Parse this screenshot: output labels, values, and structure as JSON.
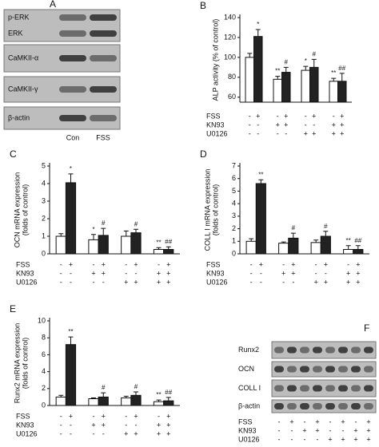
{
  "chart_data": [
    {
      "type": "bar",
      "panel": "B",
      "ylabel": [
        "ALP activity (% of control)"
      ],
      "ylim": [
        55,
        140
      ],
      "yticks": [
        60,
        80,
        100,
        120,
        140
      ],
      "series": [
        {
          "color": "#ffffff",
          "values": [
            100,
            78,
            87,
            76
          ],
          "errors": [
            4,
            3,
            4,
            3
          ],
          "markers": [
            null,
            "**",
            "*",
            "**"
          ]
        },
        {
          "color": "#222222",
          "values": [
            121,
            85,
            90,
            76
          ],
          "errors": [
            7,
            5,
            8,
            8
          ],
          "markers": [
            "*",
            "#",
            "#",
            "##"
          ]
        }
      ],
      "treatments": [
        {
          "label": "FSS",
          "signs": [
            "-",
            "+",
            "-",
            "+",
            "-",
            "+",
            "-",
            "+"
          ]
        },
        {
          "label": "KN93",
          "signs": [
            "-",
            "-",
            "+",
            "+",
            "-",
            "-",
            "+",
            "+"
          ]
        },
        {
          "label": "U0126",
          "signs": [
            "-",
            "-",
            "-",
            "-",
            "+",
            "+",
            "+",
            "+"
          ]
        }
      ]
    },
    {
      "type": "bar",
      "panel": "C",
      "ylabel": [
        "OCN mRNA expression",
        "(folds of control)"
      ],
      "ylim": [
        0,
        5
      ],
      "yticks": [
        0,
        1,
        2,
        3,
        4,
        5
      ],
      "series": [
        {
          "color": "#ffffff",
          "values": [
            1.0,
            0.8,
            1.0,
            0.25
          ],
          "errors": [
            0.15,
            0.3,
            0.3,
            0.1
          ],
          "markers": [
            null,
            "*",
            null,
            "**"
          ]
        },
        {
          "color": "#222222",
          "values": [
            4.05,
            1.05,
            1.2,
            0.25
          ],
          "errors": [
            0.5,
            0.4,
            0.2,
            0.15
          ],
          "markers": [
            "*",
            "#",
            "#",
            "##"
          ]
        }
      ],
      "treatments": [
        {
          "label": "FSS",
          "signs": [
            "-",
            "+",
            "-",
            "+",
            "-",
            "+",
            "-",
            "+"
          ]
        },
        {
          "label": "KN93",
          "signs": [
            "-",
            "-",
            "+",
            "+",
            "-",
            "-",
            "+",
            "+"
          ]
        },
        {
          "label": "U0126",
          "signs": [
            "-",
            "-",
            "-",
            "-",
            "+",
            "+",
            "+",
            "+"
          ]
        }
      ]
    },
    {
      "type": "bar",
      "panel": "D",
      "ylabel": [
        "COLL I mRNA expression",
        "(folds of control)"
      ],
      "ylim": [
        0,
        7
      ],
      "yticks": [
        0,
        1,
        2,
        3,
        4,
        5,
        6,
        7
      ],
      "series": [
        {
          "color": "#ffffff",
          "values": [
            1.0,
            0.85,
            0.9,
            0.35
          ],
          "errors": [
            0.2,
            0.1,
            0.2,
            0.3
          ],
          "markers": [
            null,
            null,
            null,
            "**"
          ]
        },
        {
          "color": "#222222",
          "values": [
            5.6,
            1.25,
            1.4,
            0.35
          ],
          "errors": [
            0.3,
            0.4,
            0.4,
            0.3
          ],
          "markers": [
            "**",
            "#",
            "#",
            "##"
          ]
        }
      ],
      "treatments": [
        {
          "label": "FSS",
          "signs": [
            "-",
            "+",
            "-",
            "+",
            "-",
            "+",
            "-",
            "+"
          ]
        },
        {
          "label": "KN93",
          "signs": [
            "-",
            "-",
            "+",
            "+",
            "-",
            "-",
            "+",
            "+"
          ]
        },
        {
          "label": "U0126",
          "signs": [
            "-",
            "-",
            "-",
            "-",
            "+",
            "+",
            "+",
            "+"
          ]
        }
      ]
    },
    {
      "type": "bar",
      "panel": "E",
      "ylabel": [
        "Runx2 mRNA expression",
        "(folds of control)"
      ],
      "ylim": [
        0,
        10
      ],
      "yticks": [
        0,
        2,
        4,
        6,
        8,
        10
      ],
      "series": [
        {
          "color": "#ffffff",
          "values": [
            1.0,
            0.8,
            0.9,
            0.45
          ],
          "errors": [
            0.2,
            0.1,
            0.2,
            0.2
          ],
          "markers": [
            null,
            null,
            null,
            "**"
          ]
        },
        {
          "color": "#222222",
          "values": [
            7.2,
            1.0,
            1.2,
            0.55
          ],
          "errors": [
            0.9,
            0.5,
            0.4,
            0.4
          ],
          "markers": [
            "**",
            "#",
            "#",
            "##"
          ]
        }
      ],
      "treatments": [
        {
          "label": "FSS",
          "signs": [
            "-",
            "+",
            "-",
            "+",
            "-",
            "+",
            "-",
            "+"
          ]
        },
        {
          "label": "KN93",
          "signs": [
            "-",
            "-",
            "+",
            "+",
            "-",
            "-",
            "+",
            "+"
          ]
        },
        {
          "label": "U0126",
          "signs": [
            "-",
            "-",
            "-",
            "-",
            "+",
            "+",
            "+",
            "+"
          ]
        }
      ]
    }
  ],
  "blots": [
    {
      "panel": "A",
      "rows": [
        [
          "p-ERK",
          "ERK"
        ],
        [
          "CaMKII-α"
        ],
        [
          "CaMKII-γ"
        ],
        [
          "β-actin"
        ]
      ],
      "lanes": [
        "Con",
        "FSS"
      ]
    },
    {
      "panel": "F",
      "rows": [
        [
          "Runx2"
        ],
        [
          "OCN"
        ],
        [
          "COLL I"
        ],
        [
          "β-actin"
        ]
      ],
      "treatments": [
        {
          "label": "FSS",
          "signs": [
            "-",
            "+",
            "-",
            "+",
            "-",
            "+",
            "-",
            "+"
          ]
        },
        {
          "label": "KN93",
          "signs": [
            "-",
            "-",
            "+",
            "+",
            "-",
            "-",
            "+",
            "+"
          ]
        },
        {
          "label": "U0126",
          "signs": [
            "-",
            "-",
            "-",
            "-",
            "+",
            "+",
            "+",
            "+"
          ]
        }
      ]
    }
  ]
}
